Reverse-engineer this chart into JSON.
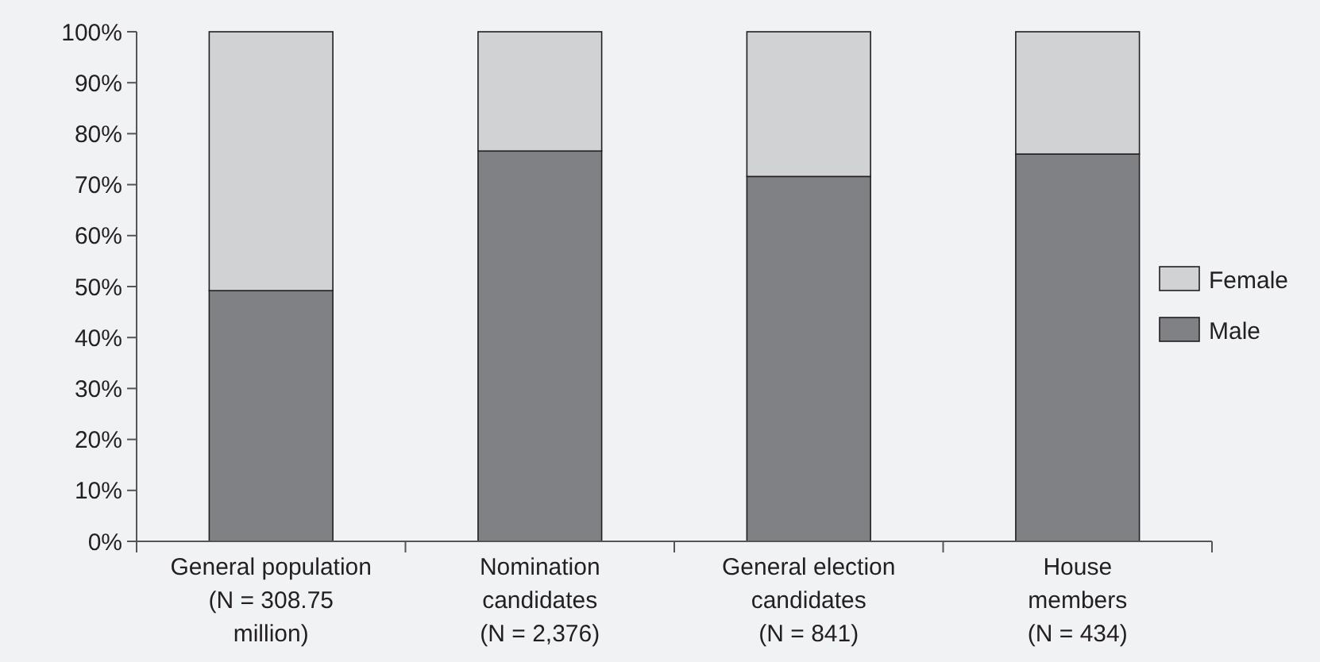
{
  "chart_data": {
    "type": "bar",
    "stacked": true,
    "categories": [
      "General population\n(N = 308.75\nmillion)",
      "Nomination\ncandidates\n(N = 2,376)",
      "General election\ncandidates\n(N = 841)",
      "House\nmembers\n(N = 434)"
    ],
    "series": [
      {
        "name": "Male",
        "color": "#808184",
        "values": [
          49.2,
          76.6,
          71.6,
          76.0
        ]
      },
      {
        "name": "Female",
        "color": "#d1d2d4",
        "values": [
          50.8,
          23.4,
          28.4,
          24.0
        ]
      }
    ],
    "ylim": [
      0,
      100
    ],
    "yticks": [
      {
        "value": 0,
        "label": "0%"
      },
      {
        "value": 10,
        "label": "10%"
      },
      {
        "value": 20,
        "label": "20%"
      },
      {
        "value": 30,
        "label": "30%"
      },
      {
        "value": 40,
        "label": "40%"
      },
      {
        "value": 50,
        "label": "50%"
      },
      {
        "value": 60,
        "label": "60%"
      },
      {
        "value": 70,
        "label": "70%"
      },
      {
        "value": 80,
        "label": "80%"
      },
      {
        "value": 90,
        "label": "90%"
      },
      {
        "value": 100,
        "label": "100%"
      }
    ],
    "grid": false,
    "legend": "right"
  }
}
